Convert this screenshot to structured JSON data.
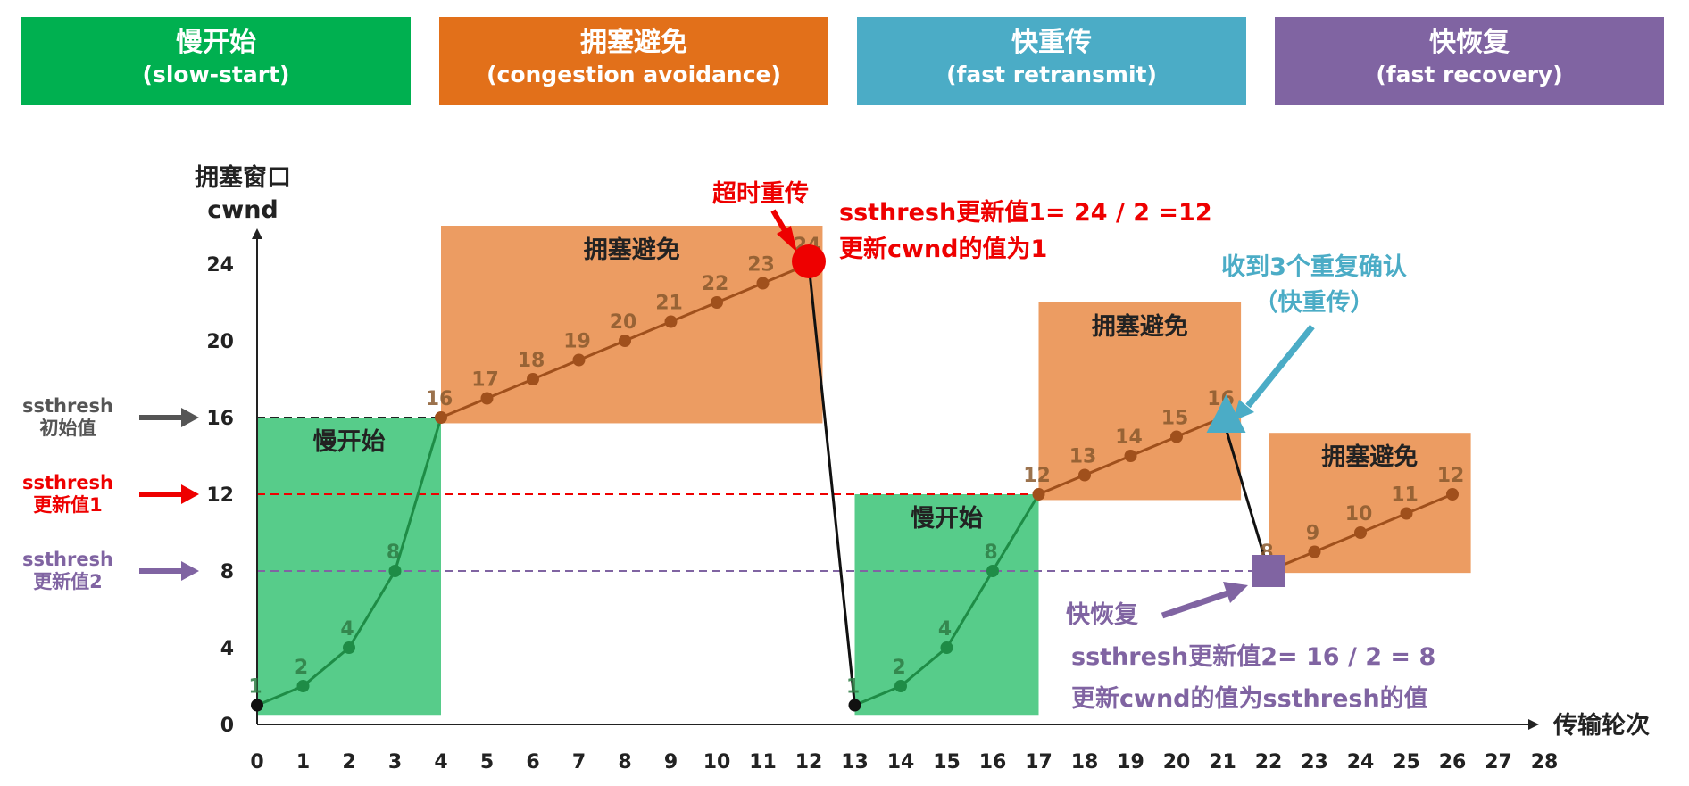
{
  "header": [
    {
      "zh": "慢开始",
      "en": "(slow-start)",
      "color": "#00b050"
    },
    {
      "zh": "拥塞避免",
      "en": "(congestion avoidance)",
      "color": "#e2701a"
    },
    {
      "zh": "快重传",
      "en": "(fast retransmit)",
      "color": "#4bacc6"
    },
    {
      "zh": "快恢复",
      "en": "(fast recovery)",
      "color": "#8064a2"
    }
  ],
  "colors": {
    "slow_start_fill": "#57cc8a",
    "congestion_avoidance_fill": "#ec9c62",
    "slow_start_line": "#1e8c46",
    "congestion_line": "#a0501c",
    "red": "#ee0000",
    "teal": "#4bacc6",
    "purple": "#8064a2",
    "gray": "#555555"
  },
  "chart_data": {
    "type": "line",
    "ylabel": [
      "拥塞窗口",
      "cwnd"
    ],
    "xlabel": "传输轮次",
    "xlim": [
      0,
      28
    ],
    "ylim": [
      0,
      24
    ],
    "x_ticks": [
      0,
      1,
      2,
      3,
      4,
      5,
      6,
      7,
      8,
      9,
      10,
      11,
      12,
      13,
      14,
      15,
      16,
      17,
      18,
      19,
      20,
      21,
      22,
      23,
      24,
      25,
      26,
      27,
      28
    ],
    "y_ticks": [
      0,
      4,
      8,
      12,
      16,
      20,
      24
    ],
    "series": [
      {
        "phase": "slow-start",
        "points": [
          [
            0,
            1
          ],
          [
            1,
            2
          ],
          [
            2,
            4
          ],
          [
            3,
            8
          ],
          [
            4,
            16
          ]
        ]
      },
      {
        "phase": "congestion-avoidance",
        "points": [
          [
            4,
            16
          ],
          [
            5,
            17
          ],
          [
            6,
            18
          ],
          [
            7,
            19
          ],
          [
            8,
            20
          ],
          [
            9,
            21
          ],
          [
            10,
            22
          ],
          [
            11,
            23
          ],
          [
            12,
            24
          ]
        ]
      },
      {
        "phase": "timeout",
        "points": [
          [
            12,
            24
          ],
          [
            13,
            1
          ]
        ]
      },
      {
        "phase": "slow-start",
        "points": [
          [
            13,
            1
          ],
          [
            14,
            2
          ],
          [
            15,
            4
          ],
          [
            16,
            8
          ],
          [
            17,
            12
          ]
        ]
      },
      {
        "phase": "congestion-avoidance",
        "points": [
          [
            17,
            12
          ],
          [
            18,
            13
          ],
          [
            19,
            14
          ],
          [
            20,
            15
          ],
          [
            21,
            16
          ]
        ]
      },
      {
        "phase": "fast-retransmit",
        "points": [
          [
            21,
            16
          ],
          [
            22,
            8
          ]
        ]
      },
      {
        "phase": "congestion-avoidance",
        "points": [
          [
            22,
            8
          ],
          [
            23,
            9
          ],
          [
            24,
            10
          ],
          [
            25,
            11
          ],
          [
            26,
            12
          ]
        ]
      }
    ],
    "point_labels": [
      {
        "x": 0,
        "y": 1,
        "text": "1",
        "g": true
      },
      {
        "x": 1,
        "y": 2,
        "text": "2",
        "g": true
      },
      {
        "x": 2,
        "y": 4,
        "text": "4",
        "g": true
      },
      {
        "x": 3,
        "y": 8,
        "text": "8",
        "g": true
      },
      {
        "x": 4,
        "y": 16,
        "text": "16"
      },
      {
        "x": 5,
        "y": 17,
        "text": "17"
      },
      {
        "x": 6,
        "y": 18,
        "text": "18"
      },
      {
        "x": 7,
        "y": 19,
        "text": "19"
      },
      {
        "x": 8,
        "y": 20,
        "text": "20"
      },
      {
        "x": 9,
        "y": 21,
        "text": "21"
      },
      {
        "x": 10,
        "y": 22,
        "text": "22"
      },
      {
        "x": 11,
        "y": 23,
        "text": "23"
      },
      {
        "x": 12,
        "y": 24,
        "text": "24"
      },
      {
        "x": 13,
        "y": 1,
        "text": "1",
        "g": true
      },
      {
        "x": 14,
        "y": 2,
        "text": "2",
        "g": true
      },
      {
        "x": 15,
        "y": 4,
        "text": "4",
        "g": true
      },
      {
        "x": 16,
        "y": 8,
        "text": "8",
        "g": true
      },
      {
        "x": 17,
        "y": 12,
        "text": "12"
      },
      {
        "x": 18,
        "y": 13,
        "text": "13"
      },
      {
        "x": 19,
        "y": 14,
        "text": "14"
      },
      {
        "x": 20,
        "y": 15,
        "text": "15"
      },
      {
        "x": 21,
        "y": 16,
        "text": "16"
      },
      {
        "x": 22,
        "y": 8,
        "text": "8"
      },
      {
        "x": 23,
        "y": 9,
        "text": "9"
      },
      {
        "x": 24,
        "y": 10,
        "text": "10"
      },
      {
        "x": 25,
        "y": 11,
        "text": "11"
      },
      {
        "x": 26,
        "y": 12,
        "text": "12"
      }
    ],
    "regions": [
      {
        "type": "slow-start",
        "x": [
          0,
          4
        ],
        "y": [
          0.5,
          16
        ],
        "label": "慢开始"
      },
      {
        "type": "congestion-avoidance",
        "x": [
          4,
          12.3
        ],
        "y": [
          15.7,
          26
        ],
        "label": "拥塞避免"
      },
      {
        "type": "slow-start",
        "x": [
          13,
          17
        ],
        "y": [
          0.5,
          12
        ],
        "label": "慢开始"
      },
      {
        "type": "congestion-avoidance",
        "x": [
          17,
          21.4
        ],
        "y": [
          11.7,
          22
        ],
        "label": "拥塞避免"
      },
      {
        "type": "congestion-avoidance",
        "x": [
          22,
          26.4
        ],
        "y": [
          7.9,
          15.2
        ],
        "label": "拥塞避免"
      }
    ],
    "thresholds": [
      {
        "y": 16,
        "x_end": 4,
        "color": "#222222",
        "label": [
          "ssthresh",
          "初始值"
        ],
        "label_color": "#555555",
        "arrow_color": "#555555"
      },
      {
        "y": 12,
        "x_end": 17,
        "color": "#ee0000",
        "label": [
          "ssthresh",
          "更新值1"
        ],
        "label_color": "#ee0000",
        "arrow_color": "#ee0000"
      },
      {
        "y": 8,
        "x_end": 22,
        "color": "#8064a2",
        "label": [
          "ssthresh",
          "更新值2"
        ],
        "label_color": "#8064a2",
        "arrow_color": "#8064a2"
      }
    ],
    "annotations": {
      "timeout": {
        "label": "超时重传",
        "x": 12,
        "y": 24
      },
      "timeout_note": [
        "ssthresh更新值1= 24 / 2 =12",
        "更新cwnd的值为1"
      ],
      "fast_retransmit": {
        "label": [
          "收到3个重复确认",
          "（快重传）"
        ],
        "x": 21,
        "y": 16
      },
      "fast_recovery": {
        "label": "快恢复",
        "x": 22,
        "y": 8
      },
      "fast_recovery_note": [
        "ssthresh更新值2= 16 / 2 = 8",
        "更新cwnd的值为ssthresh的值"
      ]
    }
  }
}
